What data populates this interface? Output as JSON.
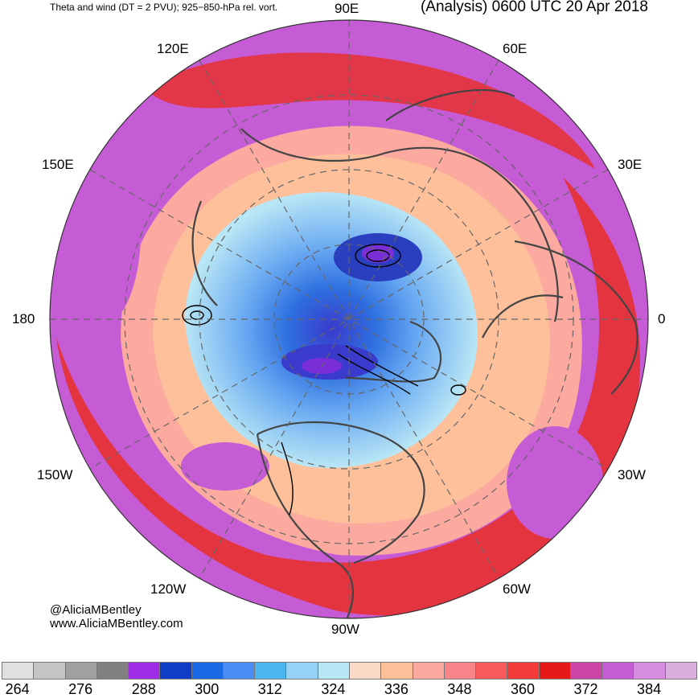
{
  "header": {
    "left_title": "Theta and wind (DT = 2 PVU); 925−850-hPa rel. vort.",
    "right_title": "(Analysis) 0600 UTC 20 Apr 2018"
  },
  "map": {
    "projection": "north-polar-stereographic",
    "longitude_labels": {
      "90E": "90E",
      "60E": "60E",
      "30E": "30E",
      "0": "0",
      "30W": "30W",
      "60W": "60W",
      "90W": "90W",
      "120W": "120W",
      "150W": "150W",
      "180": "180",
      "150E": "150E",
      "120E": "120E"
    },
    "colors": {
      "ocean_outer": "#c65bd6",
      "coastline": "#444444",
      "vorticity_contour": "#000000",
      "gridline": "#666666"
    }
  },
  "credits": {
    "handle": "@AliciaMBentley",
    "website": "www.AliciaMBentley.com"
  },
  "colorbar": {
    "colors": [
      "#e0e0e0",
      "#c4c4c4",
      "#a0a0a0",
      "#808080",
      "#9f2de8",
      "#0f3dc8",
      "#1a6ae6",
      "#4b8df5",
      "#4bb7f0",
      "#96d2f5",
      "#b9e6f5",
      "#fbd9c7",
      "#fdc09b",
      "#fca9a0",
      "#f8858a",
      "#f85a5c",
      "#f53a3a",
      "#e61818",
      "#cc44a8",
      "#c65bd6",
      "#d68ee0",
      "#dcaee0"
    ],
    "tick_labels": [
      "264",
      "276",
      "288",
      "300",
      "312",
      "324",
      "336",
      "348",
      "360",
      "372",
      "384"
    ]
  }
}
